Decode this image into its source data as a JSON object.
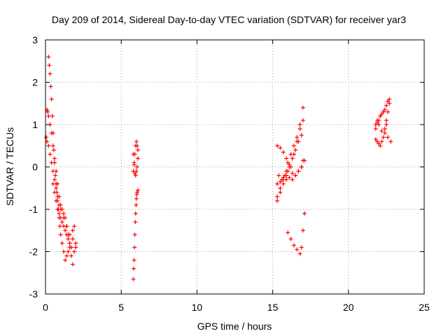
{
  "chart_data": {
    "type": "scatter",
    "title": "Day 209 of 2014, Sidereal Day-to-day VTEC variation (SDTVAR) for receiver yar3",
    "xlabel": "GPS time / hours",
    "ylabel": "SDTVAR / TECUs",
    "xlim": [
      0,
      25
    ],
    "ylim": [
      -3,
      3
    ],
    "xticks": [
      0,
      5,
      10,
      15,
      20,
      25
    ],
    "yticks": [
      -3,
      -2,
      -1,
      0,
      1,
      2,
      3
    ],
    "xtick_labels": [
      "0",
      "5",
      "10",
      "15",
      "20",
      "25"
    ],
    "ytick_labels": [
      "-3",
      "-2",
      "-1",
      "0",
      "1",
      "2",
      "3"
    ],
    "grid": true,
    "marker": "+",
    "color": "#ff0000",
    "series": [
      {
        "name": "SDTVAR",
        "x": [
          0.2,
          0.25,
          0.3,
          0.35,
          0.4,
          0.45,
          0.5,
          0.55,
          0.6,
          0.65,
          0.7,
          0.75,
          0.8,
          0.85,
          0.9,
          0.95,
          1.0,
          1.1,
          1.2,
          1.3,
          1.4,
          1.5,
          1.6,
          1.7,
          1.8,
          1.9,
          2.0,
          0.1,
          0.15,
          0.2,
          0.3,
          0.4,
          0.5,
          0.6,
          0.7,
          0.8,
          0.9,
          1.0,
          1.1,
          1.2,
          1.3,
          1.4,
          1.5,
          1.6,
          0.05,
          0.1,
          0.2,
          0.3,
          0.4,
          0.5,
          0.6,
          0.7,
          0.8,
          0.9,
          1.0,
          1.2,
          1.4,
          1.6,
          1.8,
          2.0,
          0.5,
          0.6,
          0.7,
          0.8,
          0.9,
          1.0,
          1.1,
          1.2,
          1.3,
          1.4,
          1.5,
          1.6,
          1.7,
          1.8,
          1.9,
          5.8,
          5.85,
          5.9,
          5.95,
          6.0,
          6.05,
          6.1,
          6.1,
          6.05,
          6.0,
          5.95,
          5.9,
          5.85,
          5.8,
          5.8,
          5.82,
          5.85,
          5.88,
          5.9,
          5.93,
          5.95,
          5.98,
          6.0,
          6.03,
          6.05,
          6.1,
          15.3,
          15.5,
          15.7,
          15.9,
          16.1,
          16.3,
          16.5,
          16.7,
          16.9,
          17.0,
          15.3,
          15.5,
          15.7,
          15.9,
          16.1,
          16.3,
          16.5,
          16.7,
          16.9,
          17.1,
          15.4,
          15.6,
          15.8,
          16.0,
          16.2,
          16.4,
          16.6,
          16.8,
          17.0,
          15.3,
          15.5,
          15.7,
          15.9,
          16.1,
          16.3,
          16.5,
          16.7,
          16.9,
          15.3,
          15.5,
          15.7,
          15.9,
          16.0,
          16.2,
          16.4,
          16.6,
          16.8,
          17.0,
          16.0,
          16.2,
          16.4,
          16.6,
          16.8,
          16.9,
          17.0,
          17.1,
          21.8,
          21.9,
          22.0,
          22.1,
          22.2,
          22.3,
          22.4,
          22.5,
          22.6,
          22.7,
          21.8,
          21.9,
          22.0,
          22.1,
          22.2,
          22.3,
          22.4,
          22.5,
          22.6,
          22.7,
          21.8,
          22.0,
          22.2,
          22.4,
          22.6,
          22.8,
          21.9,
          22.1,
          22.3,
          22.5
        ],
        "y": [
          2.6,
          2.4,
          2.2,
          1.9,
          1.6,
          1.2,
          0.8,
          0.4,
          0.1,
          -0.2,
          -0.4,
          -0.6,
          -0.8,
          -1.0,
          -1.2,
          -1.4,
          -1.6,
          -1.8,
          -2.0,
          -2.2,
          -2.1,
          -2.0,
          -1.9,
          -2.1,
          -2.3,
          -2.0,
          -1.8,
          1.35,
          1.3,
          1.2,
          1.0,
          0.8,
          0.5,
          0.2,
          -0.1,
          -0.4,
          -0.7,
          -0.9,
          -1.0,
          -1.1,
          -1.2,
          -1.4,
          -1.6,
          -1.8,
          0.7,
          0.6,
          0.5,
          0.3,
          0.1,
          -0.1,
          -0.3,
          -0.5,
          -0.7,
          -0.9,
          -1.0,
          -1.2,
          -1.4,
          -1.6,
          -1.7,
          -1.9,
          -0.4,
          -0.6,
          -0.8,
          -1.0,
          -1.1,
          -1.2,
          -1.3,
          -1.4,
          -1.5,
          -1.6,
          -1.7,
          -1.8,
          -1.9,
          -1.5,
          -1.4,
          -0.1,
          0.1,
          0.3,
          0.5,
          0.6,
          0.5,
          0.4,
          0.2,
          0.0,
          -0.1,
          -0.2,
          -0.15,
          0.05,
          0.3,
          -2.65,
          -2.4,
          -2.2,
          -1.9,
          -1.6,
          -1.3,
          -1.1,
          -0.9,
          -0.75,
          -0.65,
          -0.6,
          -0.55,
          0.5,
          0.45,
          0.35,
          0.2,
          0.0,
          -0.15,
          -0.2,
          -0.1,
          0.0,
          0.15,
          -0.8,
          -0.6,
          -0.4,
          -0.3,
          -0.25,
          -0.3,
          -0.2,
          -0.1,
          0.0,
          0.15,
          -0.2,
          -0.3,
          -0.2,
          0.1,
          0.3,
          0.5,
          0.7,
          0.9,
          1.1,
          -0.4,
          -0.35,
          -0.25,
          -0.1,
          0.05,
          0.2,
          0.4,
          0.6,
          0.75,
          -0.7,
          -0.5,
          -0.3,
          -0.2,
          -0.1,
          0.0,
          0.3,
          0.6,
          1.0,
          1.4,
          -1.55,
          -1.7,
          -1.85,
          -1.95,
          -2.05,
          -1.9,
          -1.5,
          -1.1,
          0.65,
          0.6,
          0.55,
          0.5,
          0.6,
          0.7,
          0.9,
          1.1,
          1.3,
          1.5,
          1.0,
          1.05,
          1.1,
          1.2,
          1.25,
          1.3,
          1.35,
          1.45,
          1.55,
          1.6,
          0.9,
          1.0,
          0.85,
          0.8,
          0.7,
          0.6,
          1.1,
          1.2,
          1.3,
          1.0
        ]
      }
    ]
  }
}
